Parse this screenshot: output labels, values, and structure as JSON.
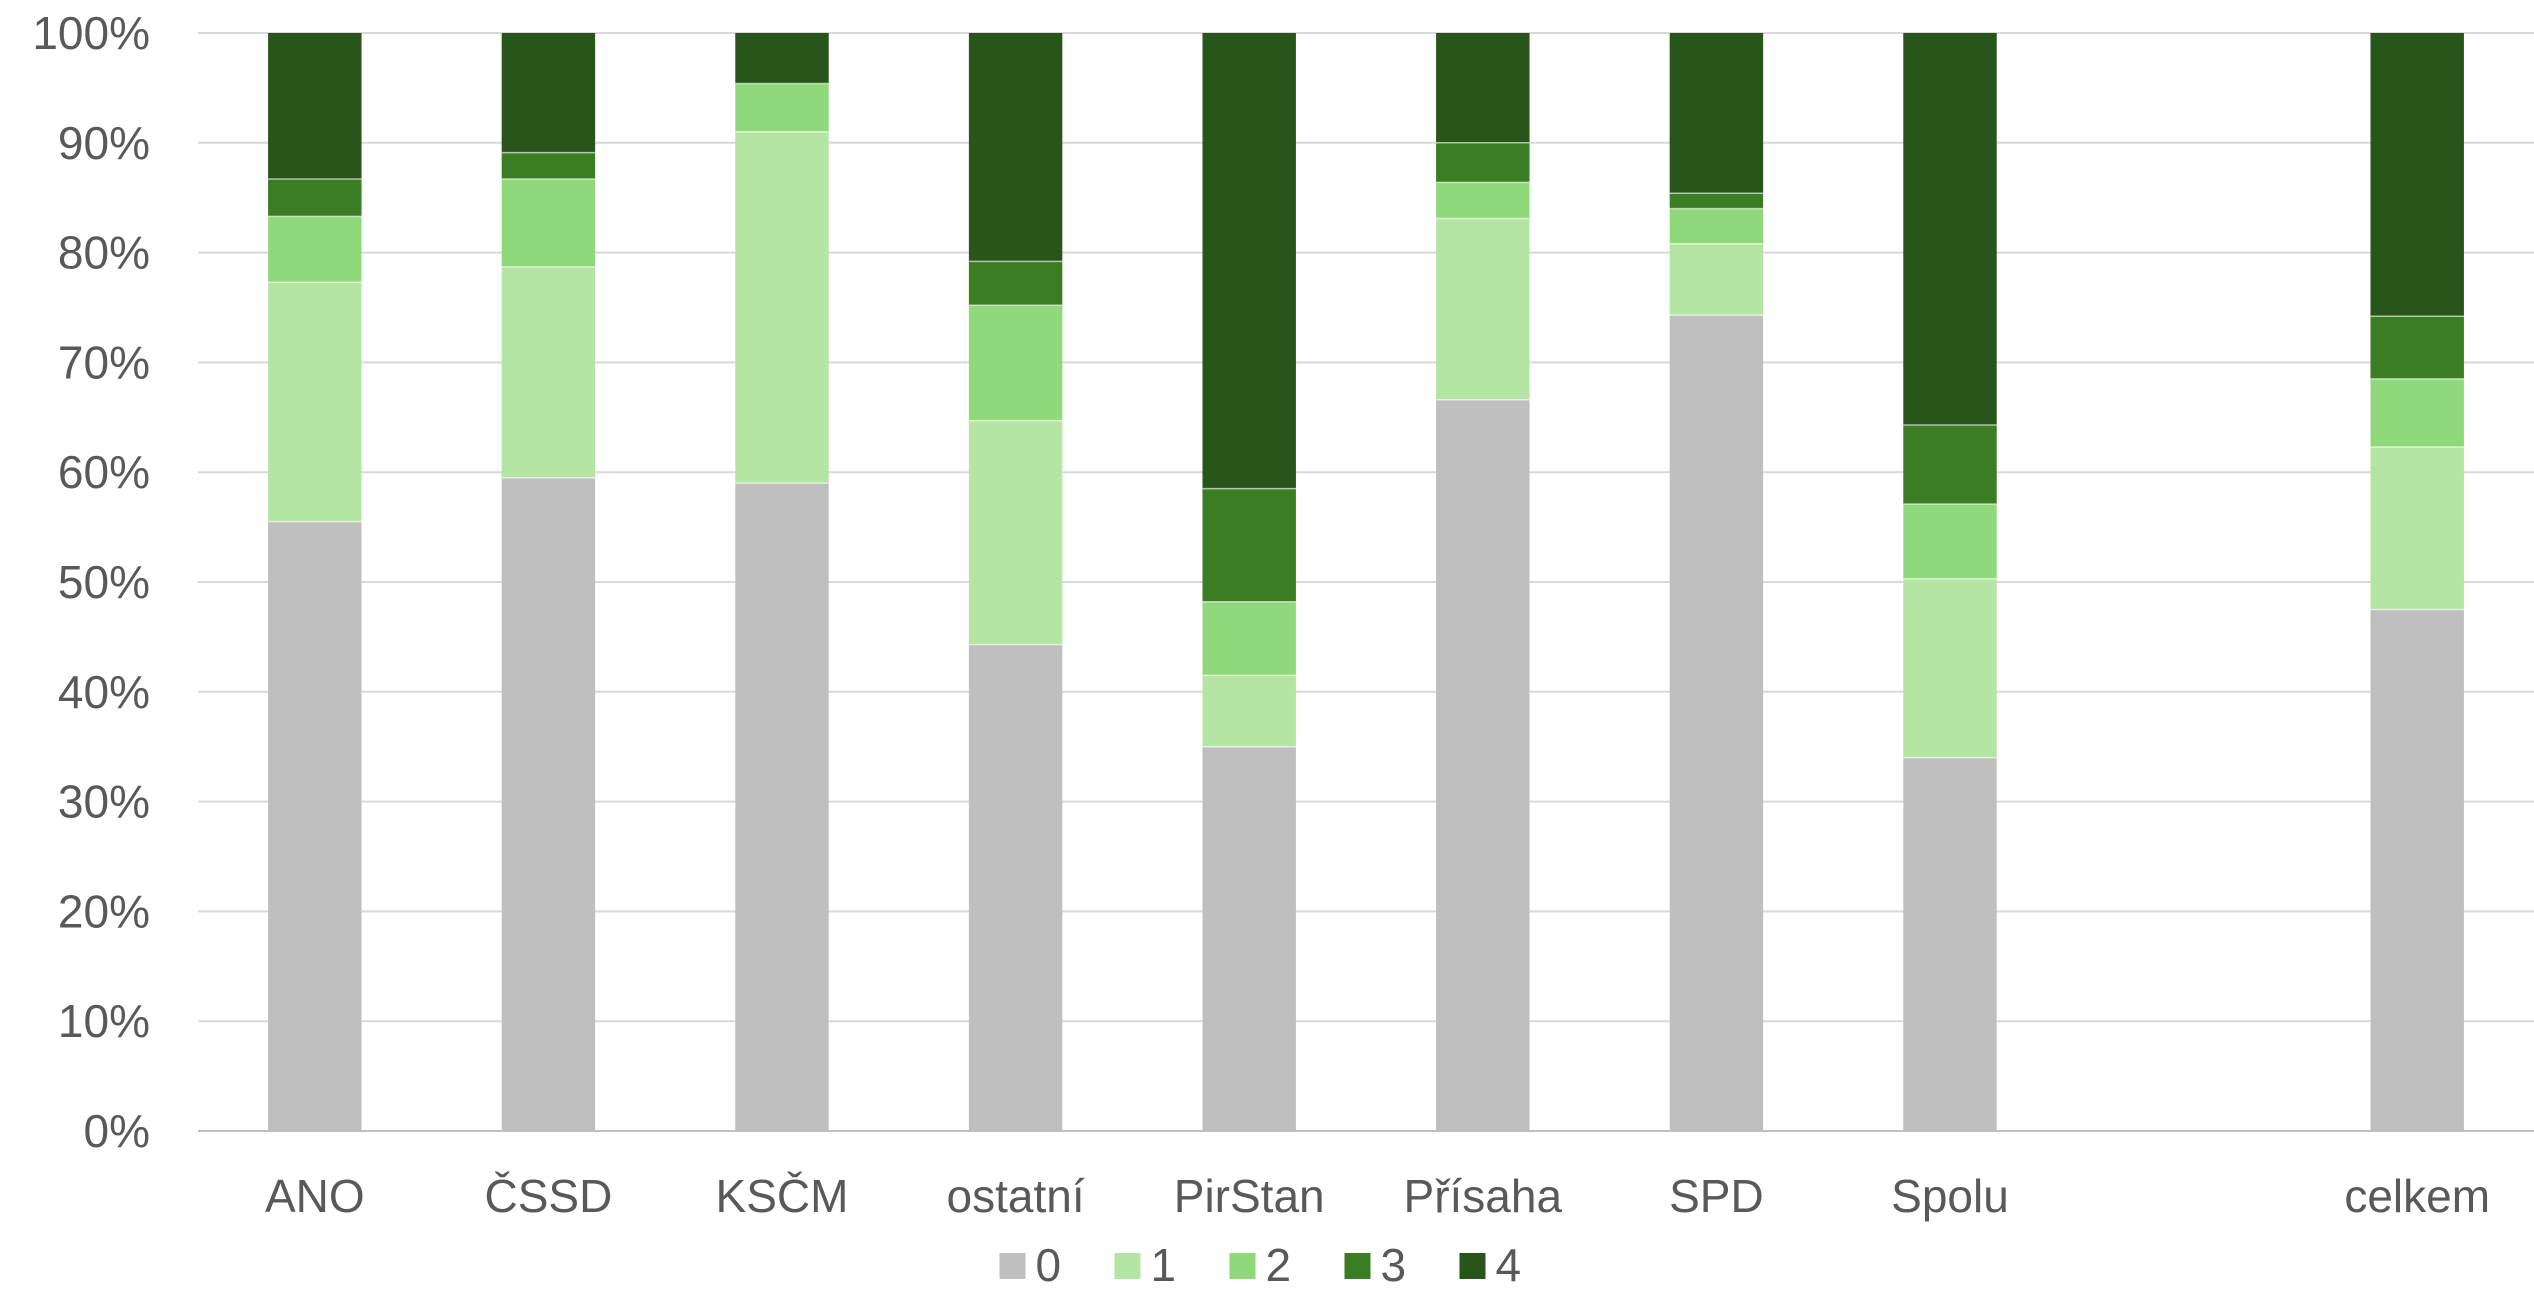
{
  "chart_data": {
    "type": "bar",
    "stacked": true,
    "normalized_percent": true,
    "categories": [
      "ANO",
      "ČSSD",
      "KSČM",
      "ostatní",
      "PirStan",
      "Přísaha",
      "SPD",
      "Spolu",
      "",
      "celkem"
    ],
    "series": [
      {
        "name": "0",
        "color": "#bfbfbf",
        "values": [
          55.5,
          59.5,
          59.0,
          44.3,
          35.0,
          66.6,
          74.3,
          34.0,
          null,
          47.5
        ]
      },
      {
        "name": "1",
        "color": "#b4e5a2",
        "values": [
          21.8,
          19.2,
          32.0,
          20.4,
          6.5,
          16.5,
          6.5,
          16.3,
          null,
          14.8
        ]
      },
      {
        "name": "2",
        "color": "#8fd97a",
        "values": [
          6.0,
          8.0,
          4.4,
          10.5,
          6.7,
          3.3,
          3.2,
          6.8,
          null,
          6.2
        ]
      },
      {
        "name": "3",
        "color": "#3b7d23",
        "values": [
          3.4,
          2.4,
          0.0,
          4.0,
          10.3,
          3.6,
          1.4,
          7.2,
          null,
          5.7
        ]
      },
      {
        "name": "4",
        "color": "#27551a",
        "values": [
          13.3,
          10.9,
          4.6,
          20.8,
          41.5,
          10.0,
          14.6,
          35.7,
          null,
          25.8
        ]
      }
    ],
    "ylim": [
      0,
      100
    ],
    "y_ticks": [
      "0%",
      "10%",
      "20%",
      "30%",
      "40%",
      "50%",
      "60%",
      "70%",
      "80%",
      "90%",
      "100%"
    ],
    "grid": true,
    "legend_position": "bottom",
    "title": "",
    "xlabel": "",
    "ylabel": ""
  }
}
